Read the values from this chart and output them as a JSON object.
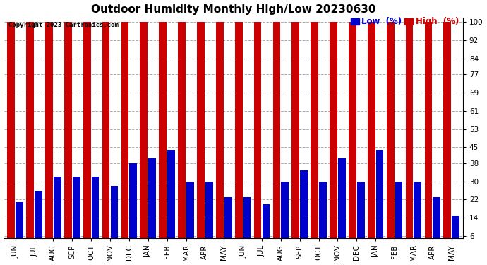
{
  "title": "Outdoor Humidity Monthly High/Low 20230630",
  "copyright": "Copyright 2023 Cartronics.com",
  "legend_low_label": "Low  (%)",
  "legend_high_label": "High  (%)",
  "months": [
    "JUN",
    "JUL",
    "AUG",
    "SEP",
    "OCT",
    "NOV",
    "DEC",
    "JAN",
    "FEB",
    "MAR",
    "APR",
    "MAY",
    "JUN",
    "JUL",
    "AUG",
    "SEP",
    "OCT",
    "NOV",
    "DEC",
    "JAN",
    "FEB",
    "MAR",
    "APR",
    "MAY"
  ],
  "high_values": [
    100,
    100,
    100,
    100,
    100,
    100,
    100,
    100,
    100,
    100,
    100,
    100,
    100,
    100,
    100,
    100,
    100,
    100,
    100,
    100,
    100,
    100,
    100,
    100
  ],
  "low_values": [
    21,
    26,
    32,
    32,
    32,
    28,
    38,
    40,
    44,
    30,
    30,
    23,
    23,
    20,
    30,
    35,
    30,
    40,
    30,
    44,
    30,
    30,
    23,
    15
  ],
  "high_color": "#cc0000",
  "low_color": "#0000cc",
  "bg_color": "#ffffff",
  "yticks": [
    6,
    14,
    22,
    30,
    38,
    45,
    53,
    61,
    69,
    77,
    84,
    92,
    100
  ],
  "ymin": 6,
  "ymax": 100,
  "title_fontsize": 11,
  "tick_fontsize": 7.5,
  "legend_fontsize": 8.5
}
